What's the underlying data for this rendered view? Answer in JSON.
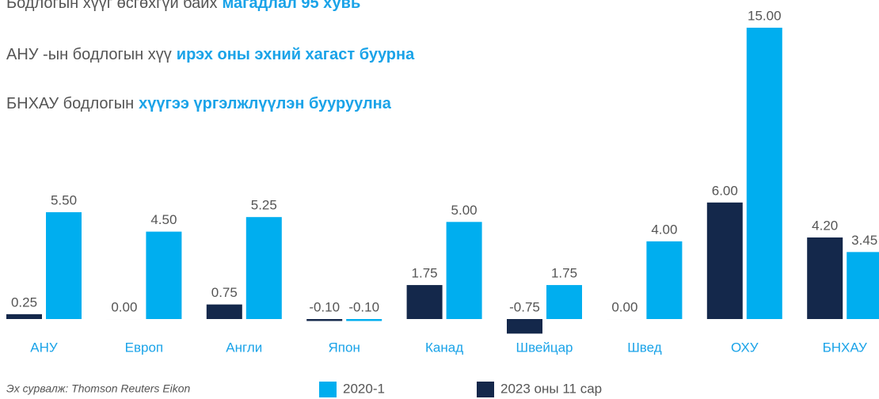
{
  "chart_data": {
    "type": "bar",
    "annotations": [
      {
        "text": "Бодлогын хүүг өсгөхгүй байх",
        "highlight": "магадлал 95 хувь"
      },
      {
        "text": "АНУ -ын бодлогын хүү",
        "highlight": "ирэх оны эхний хагаст буурна"
      },
      {
        "text": "БНХАУ бодлогын",
        "highlight": "хүүгээ үргэлжлүүлэн бууруулна"
      }
    ],
    "source": "Эх сурвалж: Thomson Reuters Eikon",
    "categories": [
      "АНУ",
      "Европ",
      "Англи",
      "Япон",
      "Канад",
      "Швейцар",
      "Швед",
      "ОХУ",
      "БНХАУ"
    ],
    "series": [
      {
        "name": "2020-1",
        "color": "#00aeef",
        "values": [
          5.5,
          4.5,
          5.25,
          -0.1,
          5,
          1.75,
          4,
          15,
          3.45
        ],
        "value_labels": [
          "5.50",
          "4.50",
          "5.25",
          "-0.10",
          "5.00",
          "1.75",
          "4.00",
          "15.00",
          "3.45"
        ]
      },
      {
        "name": "2023 оны 11 сар",
        "color": "#14284b",
        "values": [
          0.25,
          0,
          0.75,
          -0.1,
          1.75,
          -0.75,
          0,
          6,
          4.2
        ],
        "value_labels": [
          "0.25",
          "0.00",
          "0.75",
          "-0.10",
          "1.75",
          "-0.75",
          "0.00",
          "6.00",
          "4.20"
        ]
      }
    ],
    "ylim": [
      -1,
      15
    ]
  }
}
